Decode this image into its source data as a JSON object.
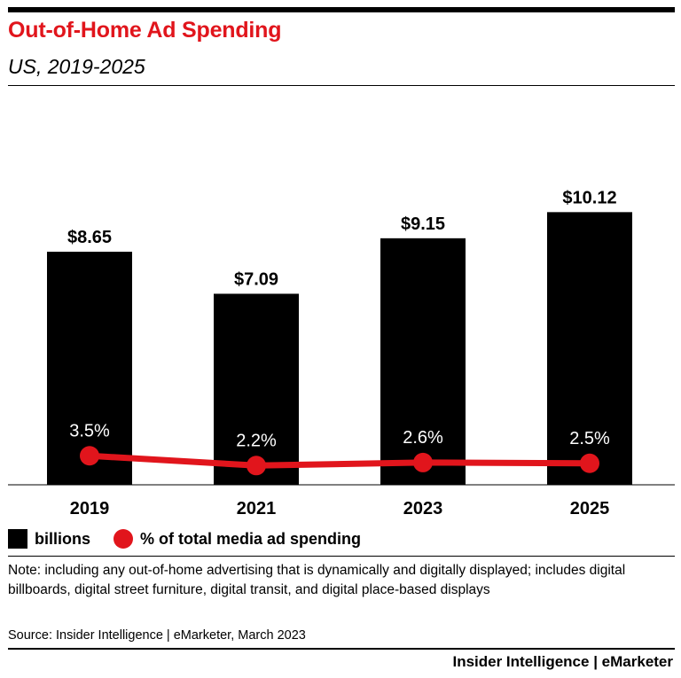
{
  "header": {
    "title": "Out-of-Home Ad Spending",
    "subtitle": "US, 2019-2025"
  },
  "colors": {
    "title": "#e1151c",
    "bars": "#000000",
    "line": "#e1151c"
  },
  "chart_data": {
    "type": "bar",
    "categories": [
      "2019",
      "2021",
      "2023",
      "2025"
    ],
    "series": [
      {
        "name": "billions",
        "values": [
          8.65,
          7.09,
          9.15,
          10.12
        ],
        "labels": [
          "$8.65",
          "$7.09",
          "$9.15",
          "$10.12"
        ],
        "color": "#000000"
      },
      {
        "name": "% of total media ad spending",
        "type": "line",
        "values": [
          3.5,
          2.2,
          2.6,
          2.5
        ],
        "labels": [
          "3.5%",
          "2.2%",
          "2.6%",
          "2.5%"
        ],
        "color": "#e1151c"
      }
    ],
    "grid": false,
    "legend_position": "bottom-left"
  },
  "legend": {
    "bars_label": "billions",
    "line_label": "% of total media ad spending"
  },
  "footer": {
    "note": "Note: including any out-of-home advertising that is dynamically and digitally displayed; includes digital billboards, digital street furniture, digital transit, and digital place-based displays",
    "source": "Source: Insider Intelligence | eMarketer, March 2023",
    "brand_left": "Insider Intelligence",
    "brand_sep": " | ",
    "brand_right": "eMarketer"
  }
}
